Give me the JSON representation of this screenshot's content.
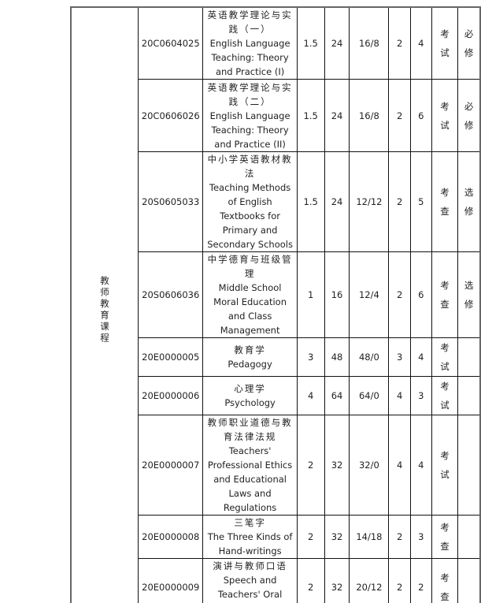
{
  "category": "教师教育课程",
  "rows": [
    {
      "code": "20C0604025",
      "name_cn": "英语教学理论与实践（一）",
      "name_en": "English Language Teaching: Theory and Practice (I)",
      "credits": "1.5",
      "hours": "24",
      "split": "16/8",
      "c5": "2",
      "c6": "4",
      "assess": "考试",
      "type": "必修"
    },
    {
      "code": "20C0606026",
      "name_cn": "英语教学理论与实践（二）",
      "name_en": "English Language Teaching: Theory and Practice (II)",
      "credits": "1.5",
      "hours": "24",
      "split": "16/8",
      "c5": "2",
      "c6": "6",
      "assess": "考试",
      "type": "必修"
    },
    {
      "code": "20S0605033",
      "name_cn": "中小学英语教材教法",
      "name_en": "Teaching Methods of English Textbooks for Primary and Secondary Schools",
      "credits": "1.5",
      "hours": "24",
      "split": "12/12",
      "c5": "2",
      "c6": "5",
      "assess": "考查",
      "type": "选修"
    },
    {
      "code": "20S0606036",
      "name_cn": "中学德育与班级管理",
      "name_en": "Middle School Moral Education and Class Management",
      "credits": "1",
      "hours": "16",
      "split": "12/4",
      "c5": "2",
      "c6": "6",
      "assess": "考查",
      "type": "选修"
    },
    {
      "code": "20E0000005",
      "name_cn": "教育学",
      "name_en": "Pedagogy",
      "credits": "3",
      "hours": "48",
      "split": "48/0",
      "c5": "3",
      "c6": "4",
      "assess": "考试",
      "type": ""
    },
    {
      "code": "20E0000006",
      "name_cn": "心理学",
      "name_en": "Psychology",
      "credits": "4",
      "hours": "64",
      "split": "64/0",
      "c5": "4",
      "c6": "3",
      "assess": "考试",
      "type": ""
    },
    {
      "code": "20E0000007",
      "name_cn": "教师职业道德与教育法律法规",
      "name_en": "Teachers' Professional Ethics and Educational Laws and Regulations",
      "credits": "2",
      "hours": "32",
      "split": "32/0",
      "c5": "4",
      "c6": "4",
      "assess": "考试",
      "type": ""
    },
    {
      "code": "20E0000008",
      "name_cn": "三笔字",
      "name_en": "The Three Kinds of Hand-writings",
      "credits": "2",
      "hours": "32",
      "split": "14/18",
      "c5": "2",
      "c6": "3",
      "assess": "考查",
      "type": ""
    },
    {
      "code": "20E0000009",
      "name_cn": "演讲与教师口语",
      "name_en": "Speech and Teachers' Oral English",
      "credits": "2",
      "hours": "32",
      "split": "20/12",
      "c5": "2",
      "c6": "2",
      "assess": "考查",
      "type": ""
    }
  ]
}
